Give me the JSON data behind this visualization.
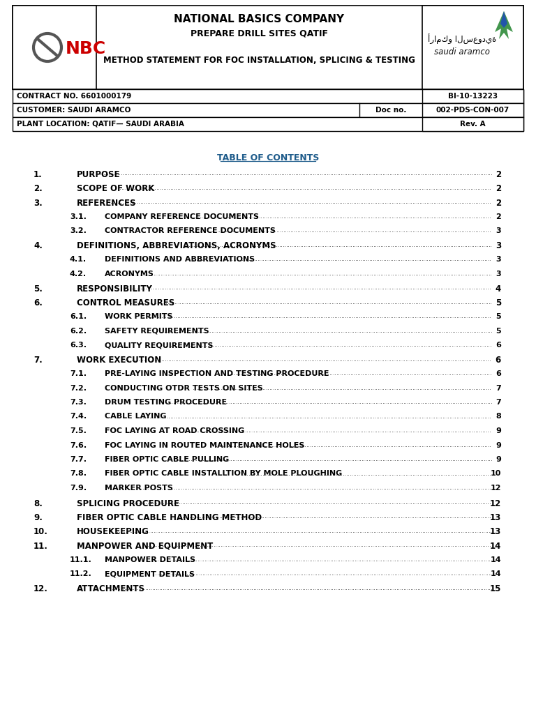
{
  "bg_color": "#ffffff",
  "border_color": "#000000",
  "header": {
    "company_name": "NATIONAL BASICS COMPANY",
    "subtitle1": "PREPARE DRILL SITES QATIF",
    "subtitle2": "METHOD STATEMENT FOR FOC INSTALLATION, SPLICING & TESTING",
    "nbc_text": "NBC",
    "aramco_text": "saudi aramco",
    "aramco_arabic": "أرامكو السعودية"
  },
  "info_rows": [
    {
      "left": "CONTRACT NO. 6601000179",
      "mid": "",
      "right": "BI-10-13223"
    },
    {
      "left": "CUSTOMER: SAUDI ARAMCO",
      "mid": "Doc no.",
      "right": "002-PDS-CON-007"
    },
    {
      "left": "PLANT LOCATION: QATIF— SAUDI ARABIA",
      "mid": "",
      "right": "Rev. A"
    }
  ],
  "toc_title": "TABLE OF CONTENTS",
  "toc_entries": [
    {
      "num": "1.",
      "indent": 0,
      "text": "PURPOSE",
      "page": "2"
    },
    {
      "num": "2.",
      "indent": 0,
      "text": "SCOPE OF WORK",
      "page": "2"
    },
    {
      "num": "3.",
      "indent": 0,
      "text": "REFERENCES",
      "page": "2"
    },
    {
      "num": "3.1.",
      "indent": 1,
      "text": "COMPANY REFERENCE DOCUMENTS",
      "page": "2"
    },
    {
      "num": "3.2.",
      "indent": 1,
      "text": "CONTRACTOR REFERENCE DOCUMENTS",
      "page": "3"
    },
    {
      "num": "4.",
      "indent": 0,
      "text": "DEFINITIONS, ABBREVIATIONS, ACRONYMS",
      "page": "3"
    },
    {
      "num": "4.1.",
      "indent": 1,
      "text": "DEFINITIONS AND ABBREVIATIONS",
      "page": "3"
    },
    {
      "num": "4.2.",
      "indent": 1,
      "text": "ACRONYMS",
      "page": "3"
    },
    {
      "num": "5.",
      "indent": 0,
      "text": "RESPONSIBILITY",
      "page": "4"
    },
    {
      "num": "6.",
      "indent": 0,
      "text": "CONTROL MEASURES",
      "page": "5"
    },
    {
      "num": "6.1.",
      "indent": 1,
      "text": "WORK PERMITS",
      "page": "5"
    },
    {
      "num": "6.2.",
      "indent": 1,
      "text": "SAFETY REQUIREMENTS",
      "page": "5"
    },
    {
      "num": "6.3.",
      "indent": 1,
      "text": "QUALITY REQUIREMENTS",
      "page": "6"
    },
    {
      "num": "7.",
      "indent": 0,
      "text": "WORK EXECUTION",
      "page": "6"
    },
    {
      "num": "7.1.",
      "indent": 1,
      "text": "PRE-LAYING INSPECTION AND TESTING PROCEDURE",
      "page": "6"
    },
    {
      "num": "7.2.",
      "indent": 1,
      "text": "CONDUCTING OTDR TESTS ON SITES",
      "page": "7"
    },
    {
      "num": "7.3.",
      "indent": 1,
      "text": "DRUM TESTING PROCEDURE",
      "page": "7"
    },
    {
      "num": "7.4.",
      "indent": 1,
      "text": "CABLE LAYING",
      "page": "8"
    },
    {
      "num": "7.5.",
      "indent": 1,
      "text": "FOC LAYING AT ROAD CROSSING",
      "page": "9"
    },
    {
      "num": "7.6.",
      "indent": 1,
      "text": "FOC LAYING IN ROUTED MAINTENANCE HOLES",
      "page": "9"
    },
    {
      "num": "7.7.",
      "indent": 1,
      "text": "FIBER OPTIC CABLE PULLING",
      "page": "9"
    },
    {
      "num": "7.8.",
      "indent": 1,
      "text": "FIBER OPTIC CABLE INSTALLTION BY MOLE PLOUGHING",
      "page": "10"
    },
    {
      "num": "7.9.",
      "indent": 1,
      "text": "MARKER POSTS",
      "page": "12"
    },
    {
      "num": "8.",
      "indent": 0,
      "text": "SPLICING PROCEDURE",
      "page": "12"
    },
    {
      "num": "9.",
      "indent": 0,
      "text": "FIBER OPTIC CABLE HANDLING METHOD",
      "page": "13"
    },
    {
      "num": "10.",
      "indent": 0,
      "text": "HOUSEKEEPING",
      "page": "13"
    },
    {
      "num": "11.",
      "indent": 0,
      "text": "MANPOWER AND EQUIPMENT",
      "page": "14"
    },
    {
      "num": "11.1.",
      "indent": 1,
      "text": "MANPOWER DETAILS",
      "page": "14"
    },
    {
      "num": "11.2.",
      "indent": 1,
      "text": "EQUIPMENT DETAILS",
      "page": "14"
    },
    {
      "num": "12.",
      "indent": 0,
      "text": "ATTACHMENTS",
      "page": "15"
    }
  ],
  "toc_color": "#1f5c8b",
  "text_color": "#000000",
  "nbc_color_circle": "#555555",
  "nbc_color_text": "#cc0000",
  "aramco_green": "#2e8b3a",
  "aramco_blue": "#2255aa"
}
